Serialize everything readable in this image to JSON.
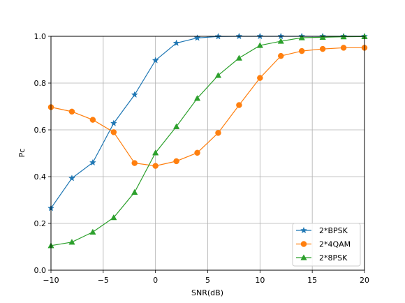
{
  "chart_data": {
    "type": "line",
    "title": "",
    "xlabel": "SNR(dB)",
    "ylabel": "Pc",
    "xlim": [
      -10,
      20
    ],
    "ylim": [
      0,
      1
    ],
    "xticks": [
      "−10",
      "−5",
      "0",
      "5",
      "10",
      "15",
      "20"
    ],
    "xtick_values": [
      -10,
      -5,
      0,
      5,
      10,
      15,
      20
    ],
    "yticks": [
      "0.0",
      "0.2",
      "0.4",
      "0.6",
      "0.8",
      "1.0"
    ],
    "ytick_values": [
      0,
      0.2,
      0.4,
      0.6,
      0.8,
      1.0
    ],
    "grid": true,
    "legend_position": "lower right",
    "x": [
      -10,
      -8,
      -6,
      -4,
      -2,
      0,
      2,
      4,
      6,
      8,
      10,
      12,
      14,
      16,
      18,
      20
    ],
    "series": [
      {
        "name": "2*BPSK",
        "color": "#1f77b4",
        "marker": "star",
        "values": [
          0.265,
          0.393,
          0.46,
          0.628,
          0.75,
          0.897,
          0.971,
          0.993,
          0.999,
          1.0,
          1.0,
          1.0,
          1.0,
          1.0,
          1.0,
          1.0
        ]
      },
      {
        "name": "2*4QAM",
        "color": "#ff7f0e",
        "marker": "circle",
        "values": [
          0.697,
          0.678,
          0.643,
          0.59,
          0.458,
          0.446,
          0.466,
          0.502,
          0.587,
          0.706,
          0.822,
          0.916,
          0.937,
          0.946,
          0.951,
          0.951
        ]
      },
      {
        "name": "2*8PSK",
        "color": "#2ca02c",
        "marker": "triangle",
        "values": [
          0.105,
          0.12,
          0.163,
          0.225,
          0.333,
          0.502,
          0.614,
          0.735,
          0.833,
          0.907,
          0.961,
          0.979,
          0.994,
          0.996,
          0.998,
          0.999
        ]
      }
    ]
  }
}
